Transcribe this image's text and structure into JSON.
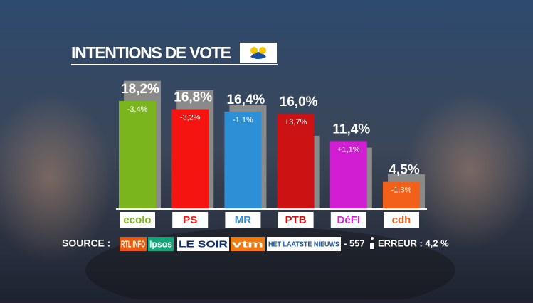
{
  "chart_data": {
    "type": "bar",
    "title": "INTENTIONS DE VOTE",
    "categories": [
      "ecolo",
      "PS",
      "MR",
      "PTB",
      "DéFI",
      "cdh"
    ],
    "values": [
      18.2,
      16.8,
      16.4,
      16.0,
      11.4,
      4.5
    ],
    "value_labels": [
      "18,2%",
      "16,8%",
      "16,4%",
      "16,0%",
      "11,4%",
      "4,5%"
    ],
    "changes": [
      -3.4,
      -3.2,
      -1.1,
      3.7,
      1.1,
      -1.3
    ],
    "change_labels": [
      "-3,4%",
      "-3,2%",
      "-1,1%",
      "+3,7%",
      "+1,1%",
      "-1,3%"
    ],
    "colors": [
      "#7ab51d",
      "#f5140f",
      "#2d8fd6",
      "#cc1212",
      "#d21ed2",
      "#f2601a"
    ],
    "previous_color": "#8a8a8a",
    "source_label": "SOURCE :",
    "sources": [
      "RTL INFO",
      "Ipsos",
      "LE SOIR",
      "vtm",
      "HET LAATSTE NIEUWS"
    ],
    "sample": "- 557",
    "error": "ERREUR : 4,2 %"
  }
}
